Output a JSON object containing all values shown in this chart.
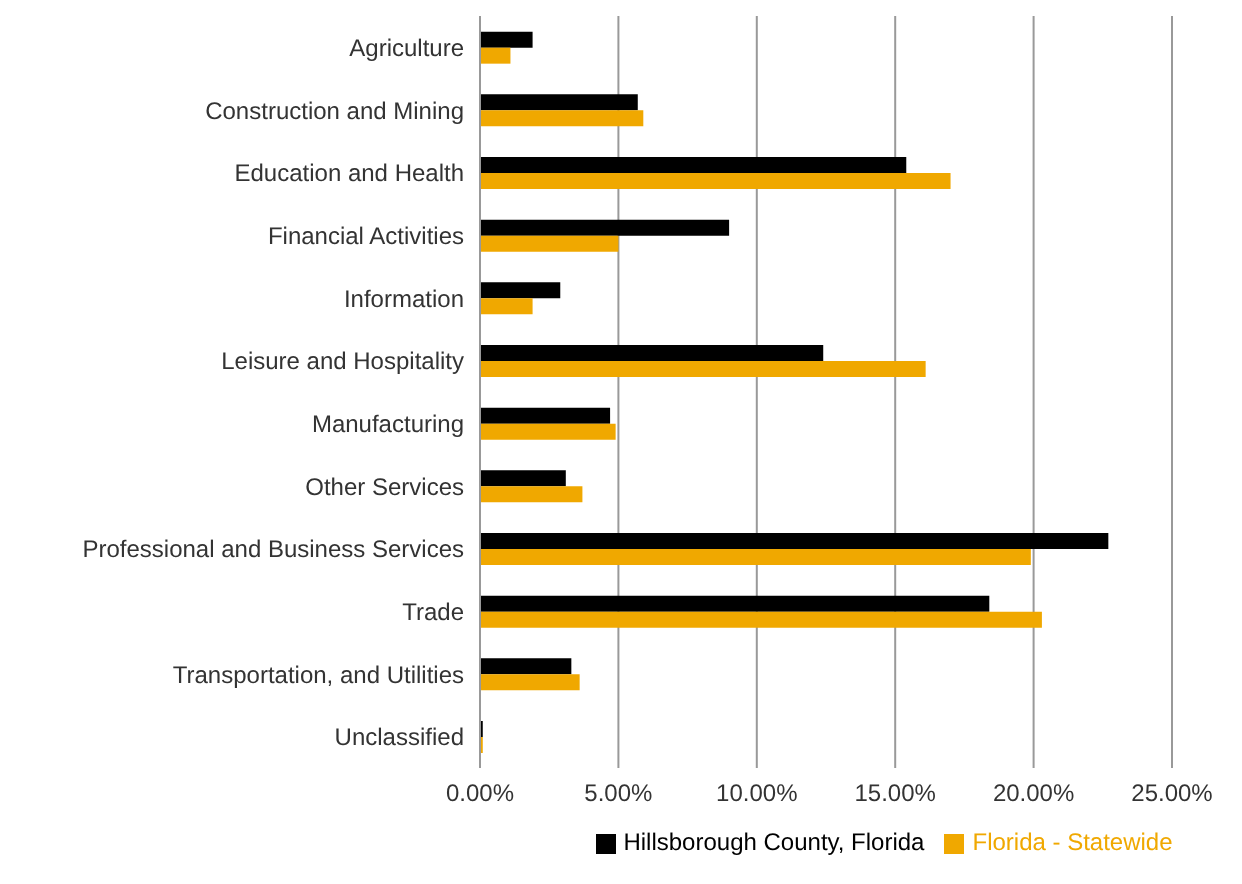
{
  "chart_data": {
    "type": "bar",
    "orientation": "horizontal",
    "categories": [
      "Agriculture",
      "Construction and Mining",
      "Education and Health",
      "Financial Activities",
      "Information",
      "Leisure and Hospitality",
      "Manufacturing",
      "Other Services",
      "Professional and Business Services",
      "Trade",
      "Transportation, and Utilities",
      "Unclassified"
    ],
    "series": [
      {
        "name": "Hillsborough County, Florida",
        "color": "#000000",
        "values": [
          0.019,
          0.057,
          0.154,
          0.09,
          0.029,
          0.124,
          0.047,
          0.031,
          0.227,
          0.184,
          0.033,
          0.001
        ]
      },
      {
        "name": "Florida - Statewide",
        "color": "#f0a800",
        "values": [
          0.011,
          0.059,
          0.17,
          0.05,
          0.019,
          0.161,
          0.049,
          0.037,
          0.199,
          0.203,
          0.036,
          0.001
        ]
      }
    ],
    "xlim": [
      0,
      0.25
    ],
    "xticks": [
      {
        "value": 0,
        "label": "0.00%"
      },
      {
        "value": 0.05,
        "label": "5.00%"
      },
      {
        "value": 0.1,
        "label": "10.00%"
      },
      {
        "value": 0.15,
        "label": "15.00%"
      },
      {
        "value": 0.2,
        "label": "20.00%"
      },
      {
        "value": 0.25,
        "label": "25.00%"
      }
    ],
    "grid": "x",
    "legend": "bottom"
  }
}
